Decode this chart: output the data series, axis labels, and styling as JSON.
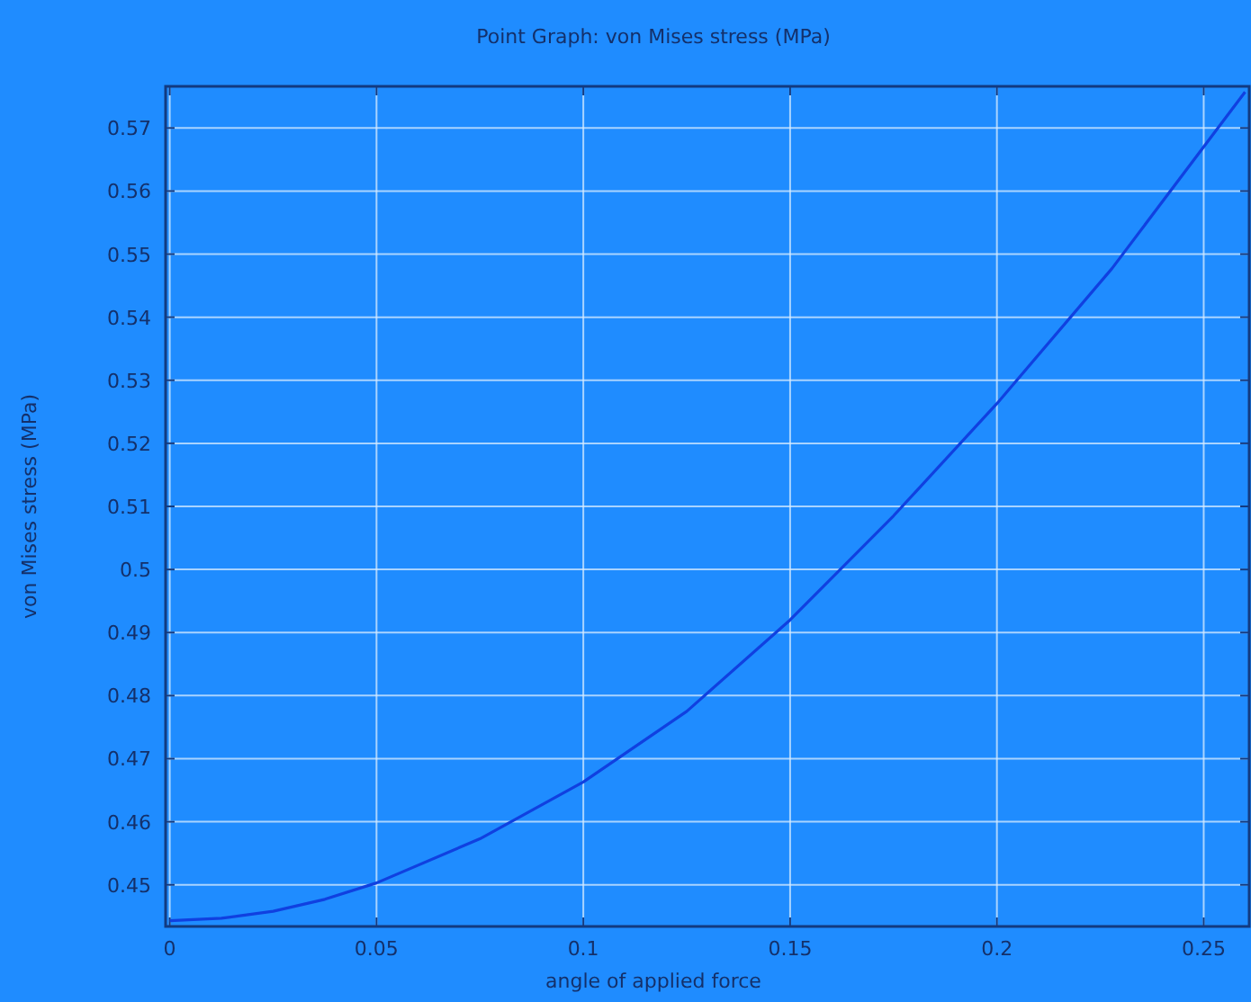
{
  "chart_data": {
    "type": "line",
    "title": "Point Graph: von Mises stress (MPa)",
    "xlabel": "angle of applied force",
    "ylabel": "von Mises stress (MPa)",
    "x": [
      0,
      0.0125,
      0.025,
      0.0375,
      0.05,
      0.075,
      0.1,
      0.125,
      0.15,
      0.175,
      0.2,
      0.2278,
      0.26
    ],
    "series": [
      {
        "color": "#1040e0",
        "values": [
          0.4443,
          0.4447,
          0.4458,
          0.4477,
          0.4503,
          0.4573,
          0.4663,
          0.4775,
          0.492,
          0.5085,
          0.5263,
          0.5477,
          0.5757
        ]
      }
    ],
    "xlim": [
      -0.001,
      0.261
    ],
    "ylim": [
      0.4434,
      0.5766
    ],
    "xticks": [
      0,
      0.05,
      0.1,
      0.15,
      0.2,
      0.25
    ],
    "yticks": [
      0.45,
      0.46,
      0.47,
      0.48,
      0.49,
      0.5,
      0.51,
      0.52,
      0.53,
      0.54,
      0.55,
      0.56,
      0.57
    ],
    "grid": true,
    "marker": "none",
    "line_style": "solid"
  }
}
